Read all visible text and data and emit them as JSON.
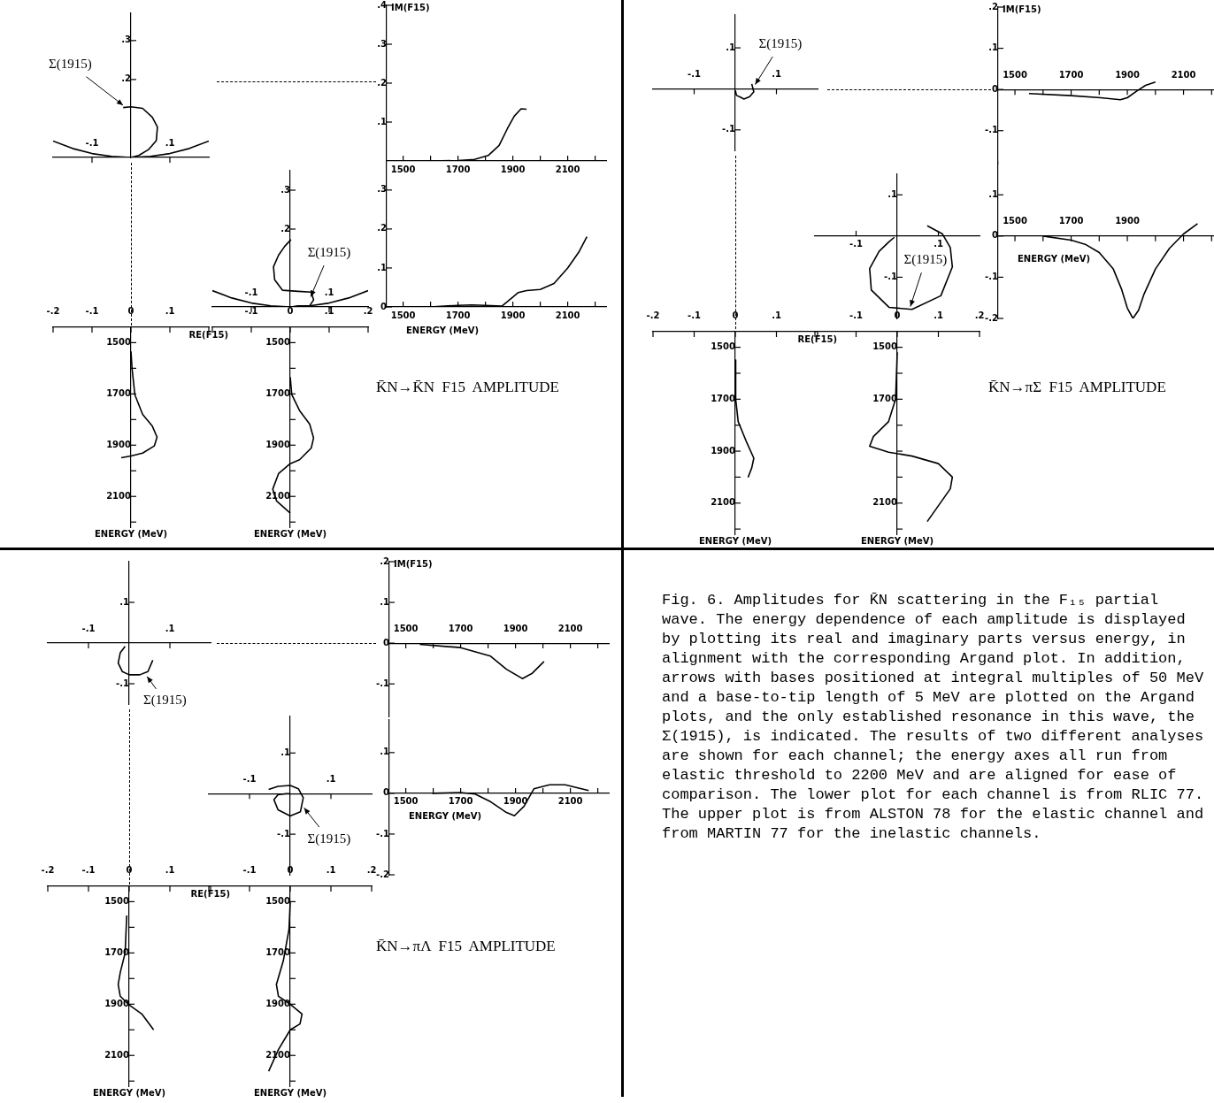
{
  "chart_data": [
    {
      "type": "line",
      "xlim": [
        -0.2,
        0.2
      ],
      "ylim": [
        0,
        0.37
      ],
      "xticks": [
        {
          "value": -0.1,
          "label": "-.1"
        },
        {
          "value": 0.1,
          "label": ".1"
        }
      ],
      "yticks": [
        {
          "value": 0.2,
          "label": ".2"
        },
        {
          "value": 0.3,
          "label": ".3"
        }
      ],
      "series": [
        {
          "color": "#000000",
          "x": [
            0,
            0.02,
            0.045,
            0.065,
            0.068,
            0.055,
            0.03,
            0,
            -0.02
          ],
          "values": [
            0,
            0.005,
            0.02,
            0.043,
            0.078,
            0.103,
            0.126,
            0.13,
            0.128
          ]
        },
        {
          "color": "#000000",
          "x": [
            -0.2,
            -0.15,
            -0.1,
            -0.05,
            0,
            0.05,
            0.1,
            0.15,
            0.2
          ],
          "values": [
            0.042,
            0.023,
            0.01,
            0.003,
            0,
            0.003,
            0.01,
            0.023,
            0.042
          ]
        }
      ],
      "annotations": [
        {
          "text": "Σ(1915)",
          "x": -0.015,
          "y": 0.13
        }
      ]
    },
    {
      "type": "line",
      "xlim": [
        1440,
        2240
      ],
      "ylim": [
        0,
        0.4
      ],
      "xticks": [
        1500,
        {
          "value": 1600,
          "label": null
        },
        1700,
        {
          "value": 1800,
          "label": null
        },
        1900,
        {
          "value": 2000,
          "label": null
        },
        2100,
        {
          "value": 2200,
          "label": null
        }
      ],
      "yticks": [
        {
          "value": 0.1,
          "label": ".1"
        },
        {
          "value": 0.2,
          "label": ".2"
        },
        {
          "value": 0.3,
          "label": ".3"
        },
        {
          "value": 0.4,
          "label": ".4"
        }
      ],
      "ylabel": "IM(F15)",
      "series": [
        {
          "color": "#000000",
          "x": [
            1600,
            1700,
            1760,
            1810,
            1850,
            1880,
            1905,
            1930,
            1950
          ],
          "values": [
            0,
            0.001,
            0.004,
            0.014,
            0.04,
            0.083,
            0.115,
            0.134,
            0.133
          ]
        }
      ]
    },
    {
      "type": "line",
      "xlim": [
        -0.2,
        0.2
      ],
      "ylim": [
        0,
        0.35
      ],
      "xticks": [
        {
          "value": -0.1,
          "label": "-.1"
        },
        {
          "value": 0.1,
          "label": ".1"
        }
      ],
      "yticks": [
        {
          "value": 0.2,
          "label": ".2"
        },
        {
          "value": 0.3,
          "label": ".3"
        }
      ],
      "series": [
        {
          "color": "#000000",
          "x": [
            0.002,
            0.02,
            0.05,
            0.06,
            0.054,
            0.02,
            -0.02,
            -0.04,
            -0.043,
            -0.03,
            -0.014,
            0.002
          ],
          "values": [
            0,
            0.003,
            0.003,
            0.018,
            0.038,
            0.04,
            0.043,
            0.07,
            0.103,
            0.133,
            0.156,
            0.173
          ]
        },
        {
          "color": "#000000",
          "x": [
            -0.2,
            -0.15,
            -0.1,
            -0.05,
            0,
            0.05,
            0.1,
            0.15,
            0.2
          ],
          "values": [
            0.042,
            0.023,
            0.01,
            0.003,
            0,
            0.003,
            0.01,
            0.023,
            0.042
          ]
        }
      ],
      "annotations": [
        {
          "text": "Σ(1915)",
          "x": 0.05,
          "y": 0.02
        }
      ]
    },
    {
      "type": "line",
      "xlim": [
        1440,
        2240
      ],
      "ylim": [
        0,
        0.37
      ],
      "xticks": [
        1500,
        {
          "value": 1600,
          "label": null
        },
        1700,
        {
          "value": 1800,
          "label": null
        },
        1900,
        {
          "value": 2000,
          "label": null
        },
        2100,
        {
          "value": 2200,
          "label": null
        }
      ],
      "yticks": [
        0,
        {
          "value": 0.1,
          "label": ".1"
        },
        {
          "value": 0.2,
          "label": ".2"
        },
        {
          "value": 0.3,
          "label": ".3"
        }
      ],
      "xlabel": "ENERGY (MeV)",
      "series": [
        {
          "color": "#000000",
          "x": [
            1600,
            1650,
            1700,
            1750,
            1800,
            1860,
            1900,
            1920,
            1950,
            2000,
            2050,
            2100,
            2140,
            2170
          ],
          "values": [
            0,
            0.002,
            0.004,
            0.005,
            0.004,
            0.002,
            0.025,
            0.037,
            0.042,
            0.045,
            0.06,
            0.1,
            0.14,
            0.18
          ]
        }
      ]
    },
    {
      "type": "line",
      "xlim": [
        -0.2,
        0.2
      ],
      "ylim": [
        2220,
        1440
      ],
      "xticks": [
        {
          "value": -0.2,
          "label": "-.2"
        },
        {
          "value": -0.1,
          "label": "-.1"
        },
        0,
        {
          "value": 0.1,
          "label": ".1"
        },
        {
          "value": 0.2,
          "label": null
        }
      ],
      "yticks": [
        1500,
        {
          "value": 1600,
          "label": null
        },
        1700,
        {
          "value": 1800,
          "label": null
        },
        1900,
        {
          "value": 2000,
          "label": null
        },
        2100,
        {
          "value": 2200,
          "label": null
        }
      ],
      "xlabel": "RE(F15)",
      "annotations": [
        "ENERGY (MeV)"
      ],
      "series": [
        {
          "color": "#000000",
          "x": [
            0,
            0.003,
            0.01,
            0.03,
            0.055,
            0.067,
            0.06,
            0.03,
            0,
            -0.025
          ],
          "values": [
            1534,
            1603,
            1703,
            1780,
            1826,
            1869,
            1903,
            1931,
            1942,
            1949
          ]
        }
      ]
    },
    {
      "type": "line",
      "xlim": [
        -0.2,
        0.2
      ],
      "ylim": [
        2220,
        1440
      ],
      "xticks": [
        {
          "value": -0.2,
          "label": null
        },
        {
          "value": -0.1,
          "label": "-.1"
        },
        0,
        {
          "value": 0.1,
          "label": ".1"
        },
        {
          "value": 0.2,
          "label": ".2"
        }
      ],
      "yticks": [
        1500,
        {
          "value": 1600,
          "label": null
        },
        1700,
        {
          "value": 1800,
          "label": null
        },
        1900,
        {
          "value": 2000,
          "label": null
        },
        2100,
        {
          "value": 2200,
          "label": null
        }
      ],
      "annotations": [
        "ENERGY (MeV)"
      ],
      "title": "K̄N→K̄N  F15  AMPLITUDE",
      "series": [
        {
          "color": "#000000",
          "x": [
            0,
            0.004,
            0.024,
            0.05,
            0.06,
            0.054,
            0.024,
            0,
            -0.03,
            -0.045,
            -0.035,
            0
          ],
          "values": [
            1634,
            1703,
            1765,
            1818,
            1872,
            1911,
            1957,
            1972,
            2011,
            2072,
            2118,
            2165
          ]
        }
      ]
    },
    {
      "type": "line",
      "xlim": [
        -0.2,
        0.2
      ],
      "ylim": [
        -0.15,
        0.18
      ],
      "xticks": [
        {
          "value": -0.1,
          "label": "-.1"
        },
        {
          "value": 0.1,
          "label": ".1"
        }
      ],
      "yticks": [
        {
          "value": -0.1,
          "label": "-.1"
        },
        {
          "value": 0.1,
          "label": ".1"
        }
      ],
      "series": [
        {
          "color": "#000000",
          "x": [
            0,
            0.003,
            0.012,
            0.021,
            0.035,
            0.045,
            0.04
          ],
          "values": [
            -0.004,
            -0.016,
            -0.02,
            -0.025,
            -0.019,
            -0.007,
            0.012
          ]
        }
      ],
      "annotations": [
        {
          "text": "Σ(1915)",
          "x": 0.045,
          "y": 0.005
        }
      ]
    },
    {
      "type": "line",
      "xlim": [
        1440,
        2240
      ],
      "ylim": [
        -0.18,
        0.2
      ],
      "xticks": [
        1500,
        {
          "value": 1600,
          "label": null
        },
        1700,
        {
          "value": 1800,
          "label": null
        },
        1900,
        {
          "value": 2000,
          "label": null
        },
        2100,
        {
          "value": 2200,
          "label": null
        }
      ],
      "yticks": [
        {
          "value": -0.1,
          "label": "-.1"
        },
        0,
        {
          "value": 0.1,
          "label": ".1"
        },
        {
          "value": 0.2,
          "label": ".2"
        }
      ],
      "ylabel": "IM(F15)",
      "series": [
        {
          "color": "#000000",
          "x": [
            1550,
            1700,
            1805,
            1875,
            1900,
            1935,
            1965,
            2000
          ],
          "values": [
            -0.01,
            -0.015,
            -0.02,
            -0.025,
            -0.02,
            -0.003,
            0.01,
            0.018
          ]
        }
      ]
    },
    {
      "type": "line",
      "xlim": [
        -0.2,
        0.2
      ],
      "ylim": [
        -0.2,
        0.15
      ],
      "xticks": [
        {
          "value": -0.1,
          "label": "-.1"
        },
        {
          "value": 0.1,
          "label": ".1"
        }
      ],
      "yticks": [
        {
          "value": -0.1,
          "label": "-.1"
        },
        {
          "value": 0.1,
          "label": ".1"
        }
      ],
      "series": [
        {
          "color": "#000000",
          "x": [
            -0.007,
            -0.02,
            -0.044,
            -0.067,
            -0.063,
            -0.02,
            0.036,
            0.106,
            0.134,
            0.129,
            0.11,
            0.073
          ],
          "values": [
            -0.003,
            -0.014,
            -0.037,
            -0.079,
            -0.131,
            -0.173,
            -0.178,
            -0.145,
            -0.075,
            -0.028,
            0.005,
            0.025
          ]
        }
      ],
      "annotations": [
        {
          "text": "Σ(1915)",
          "x": 0.03,
          "y": -0.177
        }
      ]
    },
    {
      "type": "line",
      "xlim": [
        1440,
        2240
      ],
      "ylim": [
        -0.2,
        0.18
      ],
      "xticks": [
        1500,
        {
          "value": 1600,
          "label": null
        },
        1700,
        {
          "value": 1800,
          "label": null
        },
        1900,
        {
          "value": 2000,
          "label": null
        },
        {
          "value": 2100,
          "label": null
        },
        {
          "value": 2200,
          "label": null
        }
      ],
      "yticks": [
        {
          "value": -0.2,
          "label": "-.2"
        },
        {
          "value": -0.1,
          "label": "-.1"
        },
        0,
        {
          "value": 0.1,
          "label": ".1"
        }
      ],
      "xlabel": "ENERGY (MeV)",
      "series": [
        {
          "color": "#000000",
          "x": [
            1600,
            1700,
            1750,
            1800,
            1850,
            1880,
            1900,
            1920,
            1940,
            1960,
            2000,
            2050,
            2100,
            2150
          ],
          "values": [
            0,
            -0.01,
            -0.02,
            -0.04,
            -0.08,
            -0.13,
            -0.175,
            -0.2,
            -0.18,
            -0.14,
            -0.08,
            -0.03,
            0.005,
            0.03
          ]
        }
      ]
    },
    {
      "type": "line",
      "xlim": [
        -0.2,
        0.2
      ],
      "ylim": [
        2220,
        1440
      ],
      "xticks": [
        {
          "value": -0.2,
          "label": "-.2"
        },
        {
          "value": -0.1,
          "label": "-.1"
        },
        0,
        {
          "value": 0.1,
          "label": ".1"
        },
        {
          "value": 0.2,
          "label": null
        }
      ],
      "yticks": [
        1500,
        {
          "value": 1600,
          "label": null
        },
        1700,
        {
          "value": 1800,
          "label": null
        },
        1900,
        {
          "value": 2000,
          "label": null
        },
        2100,
        {
          "value": 2200,
          "label": null
        }
      ],
      "xlabel": "RE(F15)",
      "annotations": [
        "ENERGY (MeV)"
      ],
      "series": [
        {
          "color": "#000000",
          "x": [
            0,
            0.001,
            0.007,
            0.026,
            0.045,
            0.04,
            0.031
          ],
          "values": [
            1549,
            1700,
            1786,
            1860,
            1927,
            1964,
            2001
          ]
        }
      ]
    },
    {
      "type": "line",
      "xlim": [
        -0.2,
        0.2
      ],
      "ylim": [
        2220,
        1440
      ],
      "xticks": [
        {
          "value": -0.2,
          "label": null
        },
        {
          "value": -0.1,
          "label": "-.1"
        },
        0,
        {
          "value": 0.1,
          "label": ".1"
        },
        {
          "value": 0.2,
          "label": ".2"
        }
      ],
      "yticks": [
        1500,
        {
          "value": 1600,
          "label": null
        },
        1700,
        {
          "value": 1800,
          "label": null
        },
        {
          "value": 1900,
          "label": null
        },
        {
          "value": 2000,
          "label": null
        },
        2100,
        {
          "value": 2200,
          "label": null
        }
      ],
      "annotations": [
        "ENERGY (MeV)"
      ],
      "title": "K̄N→πΣ  F15  AMPLITUDE",
      "series": [
        {
          "color": "#000000",
          "x": [
            0,
            -0.004,
            -0.021,
            -0.058,
            -0.067,
            -0.021,
            0.036,
            0.1,
            0.134,
            0.129,
            0.073
          ],
          "values": [
            1519,
            1700,
            1786,
            1844,
            1881,
            1904,
            1919,
            1948,
            2000,
            2045,
            2171
          ]
        }
      ]
    },
    {
      "type": "line",
      "xlim": [
        -0.2,
        0.2
      ],
      "ylim": [
        -0.15,
        0.2
      ],
      "xticks": [
        {
          "value": -0.1,
          "label": "-.1"
        },
        {
          "value": 0.1,
          "label": ".1"
        }
      ],
      "yticks": [
        {
          "value": -0.1,
          "label": "-.1"
        },
        {
          "value": 0.1,
          "label": ".1"
        }
      ],
      "series": [
        {
          "color": "#000000",
          "x": [
            -0.01,
            -0.022,
            -0.027,
            -0.017,
            0,
            0.026,
            0.046,
            0.058
          ],
          "values": [
            -0.008,
            -0.024,
            -0.049,
            -0.07,
            -0.078,
            -0.078,
            -0.07,
            -0.042
          ]
        }
      ],
      "annotations": [
        {
          "text": "Σ(1915)",
          "x": 0.04,
          "y": -0.077
        }
      ]
    },
    {
      "type": "line",
      "xlim": [
        1440,
        2240
      ],
      "ylim": [
        -0.18,
        0.2
      ],
      "xticks": [
        1500,
        {
          "value": 1600,
          "label": null
        },
        1700,
        {
          "value": 1800,
          "label": null
        },
        1900,
        {
          "value": 2000,
          "label": null
        },
        2100,
        {
          "value": 2200,
          "label": null
        }
      ],
      "yticks": [
        {
          "value": -0.1,
          "label": "-.1"
        },
        0,
        {
          "value": 0.1,
          "label": ".1"
        },
        {
          "value": 0.2,
          "label": ".2"
        }
      ],
      "ylabel": "IM(F15)",
      "series": [
        {
          "color": "#000000",
          "x": [
            1551,
            1700,
            1809,
            1867,
            1925,
            1961,
            2004
          ],
          "values": [
            -0.003,
            -0.011,
            -0.032,
            -0.064,
            -0.087,
            -0.074,
            -0.045
          ]
        }
      ]
    },
    {
      "type": "line",
      "xlim": [
        -0.2,
        0.2
      ],
      "ylim": [
        -0.2,
        0.19
      ],
      "xticks": [
        {
          "value": -0.1,
          "label": "-.1"
        },
        {
          "value": 0.1,
          "label": ".1"
        }
      ],
      "yticks": [
        {
          "value": -0.1,
          "label": "-.1"
        },
        {
          "value": 0.1,
          "label": ".1"
        }
      ],
      "series": [
        {
          "color": "#000000",
          "x": [
            0,
            -0.01,
            -0.03,
            -0.04,
            -0.03,
            0,
            0.025,
            0.032,
            0.02,
            0,
            -0.03,
            -0.053
          ],
          "values": [
            0,
            0,
            -0.003,
            -0.015,
            -0.04,
            -0.055,
            -0.045,
            -0.01,
            0.012,
            0.02,
            0.018,
            0.01
          ]
        }
      ],
      "annotations": [
        {
          "text": "Σ(1915)",
          "x": 0.03,
          "y": -0.03
        }
      ]
    },
    {
      "type": "line",
      "xlim": [
        1440,
        2240
      ],
      "ylim": [
        -0.2,
        0.18
      ],
      "xticks": [
        1500,
        {
          "value": 1600,
          "label": null
        },
        1700,
        {
          "value": 1800,
          "label": null
        },
        1900,
        {
          "value": 2000,
          "label": null
        },
        2100,
        {
          "value": 2200,
          "label": null
        }
      ],
      "yticks": [
        {
          "value": -0.2,
          "label": "-.2"
        },
        {
          "value": -0.1,
          "label": "-.1"
        },
        0,
        {
          "value": 0.1,
          "label": ".1"
        }
      ],
      "xlabel": "ENERGY (MeV)",
      "series": [
        {
          "color": "#000000",
          "x": [
            1596,
            1700,
            1753,
            1810,
            1867,
            1896,
            1931,
            1967,
            2024,
            2081,
            2167
          ],
          "values": [
            0,
            0.002,
            -0.002,
            -0.021,
            -0.047,
            -0.055,
            -0.032,
            0.011,
            0.021,
            0.021,
            0.007
          ]
        }
      ]
    },
    {
      "type": "line",
      "xlim": [
        -0.2,
        0.2
      ],
      "ylim": [
        2220,
        1440
      ],
      "xticks": [
        {
          "value": -0.2,
          "label": "-.2"
        },
        {
          "value": -0.1,
          "label": "-.1"
        },
        0,
        {
          "value": 0.1,
          "label": ".1"
        },
        {
          "value": 0.2,
          "label": null
        }
      ],
      "yticks": [
        1500,
        {
          "value": 1600,
          "label": null
        },
        1700,
        {
          "value": 1800,
          "label": null
        },
        1900,
        {
          "value": 2000,
          "label": null
        },
        2100,
        {
          "value": 2200,
          "label": null
        }
      ],
      "xlabel": "RE(F15)",
      "annotations": [
        "ENERGY (MeV)"
      ],
      "series": [
        {
          "color": "#000000",
          "x": [
            -0.006,
            -0.01,
            -0.022,
            -0.027,
            -0.022,
            0,
            0.031,
            0.06
          ],
          "values": [
            1554,
            1700,
            1777,
            1823,
            1869,
            1903,
            1938,
            2000
          ]
        }
      ]
    },
    {
      "type": "line",
      "xlim": [
        -0.2,
        0.2
      ],
      "ylim": [
        2220,
        1440
      ],
      "xticks": [
        {
          "value": -0.2,
          "label": null
        },
        {
          "value": -0.1,
          "label": "-.1"
        },
        0,
        {
          "value": 0.1,
          "label": ".1"
        },
        {
          "value": 0.2,
          "label": ".2"
        }
      ],
      "yticks": [
        1500,
        {
          "value": 1600,
          "label": null
        },
        1700,
        {
          "value": 1800,
          "label": null
        },
        1900,
        {
          "value": 2000,
          "label": null
        },
        2100,
        {
          "value": 2200,
          "label": null
        }
      ],
      "annotations": [
        "ENERGY (MeV)"
      ],
      "title": "K̄N→πΛ  F15  AMPLITUDE",
      "series": [
        {
          "color": "#000000",
          "x": [
            0,
            -0.003,
            -0.017,
            -0.034,
            -0.029,
            0,
            0.029,
            0.024,
            0,
            -0.029,
            -0.053
          ],
          "values": [
            1500,
            1608,
            1731,
            1823,
            1869,
            1900,
            1938,
            1977,
            2000,
            2077,
            2162
          ]
        }
      ]
    },
    {
      "type": "other",
      "annotations": [
        "Fig. 6.  Amplitudes for K̄N scattering in the F₁₅ partial wave.  The energy dependence of each amplitude is displayed by plotting its real and imaginary parts versus energy, in alignment with the corresponding Argand plot.  In addition, arrows with bases positioned at integral multiples of 50 MeV and a base-to-tip length of 5 MeV are plotted on the Argand plots, and the only established resonance in this wave, the Σ(1915), is indicated.  The results of two different analyses are shown for each channel; the energy axes all run from elastic threshold to 2200 MeV and are aligned for ease of comparison. The lower plot for each channel is from RLIC 77. The upper plot is from ALSTON 78 for the elastic channel and from MARTIN 77 for the inelastic channels."
      ]
    }
  ]
}
